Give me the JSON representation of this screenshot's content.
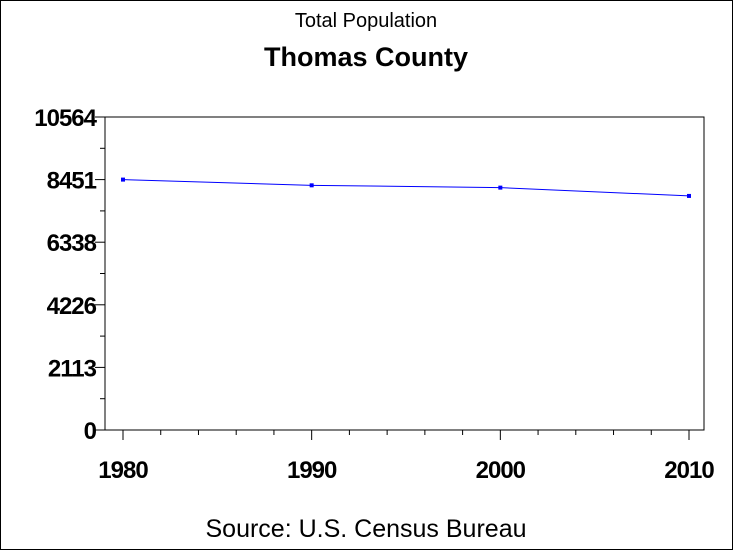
{
  "chart_data": {
    "type": "line",
    "title": "Total Population",
    "subtitle": "Thomas County",
    "footnote": "Source: U.S. Census Bureau",
    "xlabel": "",
    "ylabel": "",
    "x": [
      1980,
      1990,
      2000,
      2010
    ],
    "series": [
      {
        "name": "Total Population",
        "values": [
          8451,
          8258,
          8180,
          7900
        ],
        "color": "#0000ff"
      }
    ],
    "xlim": [
      1979,
      2010.8
    ],
    "ylim": [
      0,
      10564
    ],
    "xticks": [
      "1980",
      "1990",
      "2000",
      "2010"
    ],
    "yticks": [
      "0",
      "2113",
      "4226",
      "6338",
      "8451",
      "10564"
    ],
    "grid": false
  }
}
